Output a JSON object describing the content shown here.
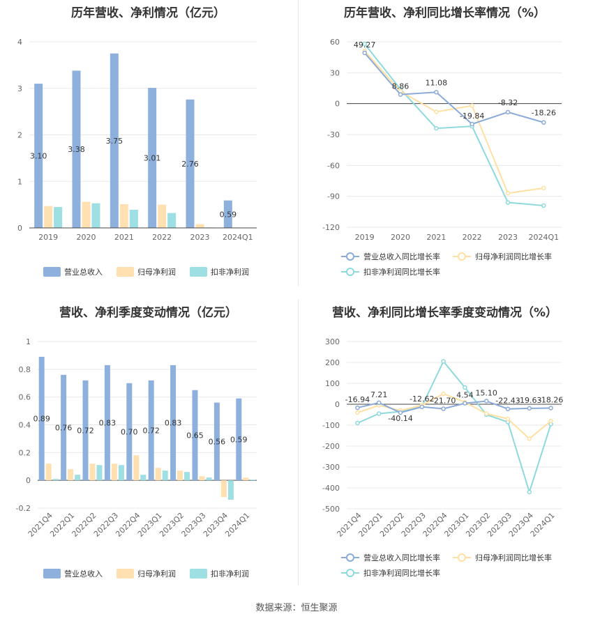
{
  "source": "数据来源：恒生聚源",
  "colors": {
    "revenue": "#8eb0dd",
    "net_profit": "#ffe0b0",
    "deducted_profit": "#9ddfe2",
    "revenue_line": "#8aaad8",
    "net_line": "#ffe0a3",
    "deducted_line": "#8ed9dc"
  },
  "chart_data": [
    {
      "id": "annual_bar",
      "type": "bar",
      "title": "历年营收、净利情况（亿元）",
      "categories": [
        "2019",
        "2020",
        "2021",
        "2022",
        "2023",
        "2024Q1"
      ],
      "series": [
        {
          "name": "营业总收入",
          "values": [
            3.1,
            3.38,
            3.75,
            3.01,
            2.76,
            0.59
          ],
          "labels": [
            "3.10",
            "3.38",
            "3.75",
            "3.01",
            "2.76",
            "0.59"
          ]
        },
        {
          "name": "归母净利润",
          "values": [
            0.47,
            0.56,
            0.51,
            0.5,
            0.08,
            0.01
          ]
        },
        {
          "name": "扣非净利润",
          "values": [
            0.45,
            0.53,
            0.39,
            0.32,
            0.01,
            0.005
          ]
        }
      ],
      "ylim": [
        0,
        4
      ],
      "yticks": [
        0,
        1,
        2,
        3,
        4
      ],
      "ytick_labels": [
        "0",
        "1",
        "2",
        "3",
        "4"
      ]
    },
    {
      "id": "annual_line",
      "type": "line",
      "title": "历年营收、净利同比增长率情况（%）",
      "categories": [
        "2019",
        "2020",
        "2021",
        "2022",
        "2023",
        "2024Q1"
      ],
      "series": [
        {
          "name": "营业总收入同比增长率",
          "values": [
            49.27,
            8.86,
            11.08,
            -19.84,
            -8.32,
            -18.26
          ],
          "labels": [
            "49.27",
            "8.86",
            "11.08",
            "-19.84",
            "-8.32",
            "-18.26"
          ]
        },
        {
          "name": "归母净利润同比增长率",
          "values": [
            51,
            12,
            -8,
            -2,
            -87,
            -82
          ]
        },
        {
          "name": "扣非净利润同比增长率",
          "values": [
            58,
            14,
            -24,
            -22,
            -96,
            -99
          ]
        }
      ],
      "ylim": [
        -120,
        60
      ],
      "yticks": [
        60,
        30,
        0,
        -30,
        -60,
        -90,
        -120
      ],
      "ytick_labels": [
        "60",
        "30",
        "0",
        "-30",
        "-60",
        "-90",
        "-120"
      ]
    },
    {
      "id": "quarter_bar",
      "type": "bar",
      "title": "营收、净利季度变动情况（亿元）",
      "categories": [
        "2021Q4",
        "2022Q1",
        "2022Q2",
        "2022Q3",
        "2022Q4",
        "2023Q1",
        "2023Q2",
        "2023Q3",
        "2023Q4",
        "2024Q1"
      ],
      "series": [
        {
          "name": "营业总收入",
          "values": [
            0.89,
            0.76,
            0.72,
            0.83,
            0.7,
            0.72,
            0.83,
            0.65,
            0.56,
            0.59
          ],
          "labels": [
            "0.89",
            "0.76",
            "0.72",
            "0.83",
            "0.70",
            "0.72",
            "0.83",
            "0.65",
            "0.56",
            "0.59"
          ]
        },
        {
          "name": "归母净利润",
          "values": [
            0.12,
            0.08,
            0.12,
            0.12,
            0.18,
            0.09,
            0.07,
            0.03,
            -0.12,
            0.02
          ]
        },
        {
          "name": "扣非净利润",
          "values": [
            0.01,
            0.04,
            0.11,
            0.11,
            0.04,
            0.07,
            0.06,
            0.02,
            -0.14,
            0.005
          ]
        }
      ],
      "ylim": [
        -0.2,
        1.0
      ],
      "yticks": [
        1,
        0.8,
        0.6,
        0.4,
        0.2,
        0,
        -0.2
      ],
      "ytick_labels": [
        "1",
        "0.8",
        "0.6",
        "0.4",
        "0.2",
        "0",
        "-0.2"
      ]
    },
    {
      "id": "quarter_line",
      "type": "line",
      "title": "营收、净利同比增长率季度变动情况（%）",
      "categories": [
        "2021Q4",
        "2022Q1",
        "2022Q2",
        "2022Q3",
        "2022Q4",
        "2023Q1",
        "2023Q2",
        "2023Q3",
        "2023Q4",
        "2024Q1"
      ],
      "series": [
        {
          "name": "营业总收入同比增长率",
          "values": [
            -16.94,
            7.21,
            -40.14,
            -12.62,
            -21.7,
            4.54,
            15.1,
            -22.43,
            -19.63,
            -18.26
          ],
          "labels": [
            "-16.94",
            "7.21",
            "-40.14",
            "-12.62",
            "-21.70",
            "4.54",
            "15.10",
            "-22.43",
            "-19.63",
            "-18.26"
          ]
        },
        {
          "name": "归母净利润同比增长率",
          "values": [
            -40,
            -5,
            -30,
            -5,
            50,
            10,
            -45,
            -70,
            -165,
            -80
          ]
        },
        {
          "name": "扣非净利润同比增长率",
          "values": [
            -90,
            -45,
            -35,
            -10,
            205,
            80,
            -50,
            -85,
            -420,
            -95
          ]
        }
      ],
      "ylim": [
        -500,
        300
      ],
      "yticks": [
        300,
        200,
        100,
        0,
        -100,
        -200,
        -300,
        -400,
        -500
      ],
      "ytick_labels": [
        "300",
        "200",
        "100",
        "0",
        "-100",
        "-200",
        "-300",
        "-400",
        "-500"
      ]
    }
  ]
}
